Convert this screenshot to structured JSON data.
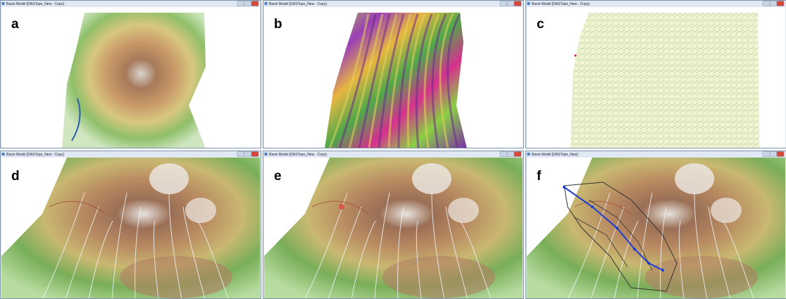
{
  "panels": [
    {
      "label": "a",
      "window_title": "Basin Model [DASTopo_New - Copy]"
    },
    {
      "label": "b",
      "window_title": "Basin Model [DASTopo_New - Copy]"
    },
    {
      "label": "c",
      "window_title": "Basin Model [DASTopo_New - Copy]"
    },
    {
      "label": "d",
      "window_title": "Basin Model [DASTopo_New - Copy]"
    },
    {
      "label": "e",
      "window_title": "Basin Model [DASTopo_New - Copy]"
    },
    {
      "label": "f",
      "window_title": "Basin Model [DASTopo_New]"
    }
  ]
}
